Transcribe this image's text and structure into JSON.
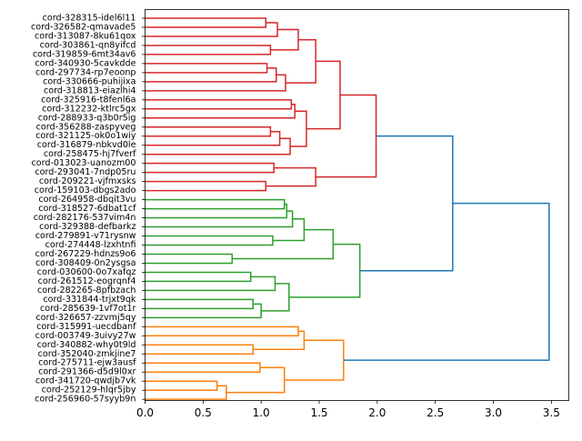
{
  "chart_data": {
    "type": "dendrogram",
    "orientation": "horizontal",
    "title": "",
    "xlabel": "",
    "ylabel": "",
    "xlim": [
      0,
      3.65
    ],
    "xticks": [
      0.0,
      0.5,
      1.0,
      1.5,
      2.0,
      2.5,
      3.0,
      3.5
    ],
    "xtick_labels": [
      "0.0",
      "0.5",
      "1.0",
      "1.5",
      "2.0",
      "2.5",
      "3.0",
      "3.5"
    ],
    "colors": {
      "cluster_red": "#d62728",
      "cluster_green": "#2ca02c",
      "cluster_orange": "#ff7f0e",
      "link_above_threshold": "#1f77b4"
    },
    "leaves": [
      "cord-328315-idel6l11",
      "cord-326582-qmavade5",
      "cord-313087-8ku61qox",
      "cord-303861-qn8yifcd",
      "cord-319859-6mt34av6",
      "cord-340930-5cavkdde",
      "cord-297734-rp7eoonp",
      "cord-330666-puhijixa",
      "cord-318813-eiazlhi4",
      "cord-325916-t8fenl6a",
      "cord-312232-ktlrc5gx",
      "cord-288933-q3b0r5ig",
      "cord-356288-zaspyveg",
      "cord-321125-ok0o1wiy",
      "cord-316879-nbkvd0le",
      "cord-258475-hj7fverf",
      "cord-013023-uanozm00",
      "cord-293041-7ndp05ru",
      "cord-209221-vjfmxsks",
      "cord-159103-dbgs2ado",
      "cord-264958-dbqit3vu",
      "cord-318527-6dbat1cf",
      "cord-282176-537vim4n",
      "cord-329388-defbarkz",
      "cord-279891-v71rysnw",
      "cord-274448-lzxhtnfi",
      "cord-267229-hdnzs9o6",
      "cord-308409-0n2ysgsa",
      "cord-030600-0o7xafqz",
      "cord-261512-eogrqnf4",
      "cord-282265-8pfbzach",
      "cord-331844-trjxt9qk",
      "cord-285639-1vf7ot1r",
      "cord-326657-zzvmj5qy",
      "cord-315991-uecdbanf",
      "cord-003749-3uivy27w",
      "cord-340882-why0t9ld",
      "cord-352040-zmkjine7",
      "cord-275711-ejw3ausf",
      "cord-291366-d5d9l0xr",
      "cord-341720-qwdjb7vk",
      "cord-252129-hlqr5jby",
      "cord-256960-57syyb9n"
    ],
    "merges": [
      {
        "a": "L:0",
        "b": "L:1",
        "height": 1.04,
        "color": "cluster_red"
      },
      {
        "a": "M:0",
        "b": "L:2",
        "height": 1.14,
        "color": "cluster_red"
      },
      {
        "a": "L:3",
        "b": "L:4",
        "height": 1.08,
        "color": "cluster_red"
      },
      {
        "a": "M:1",
        "b": "M:2",
        "height": 1.32,
        "color": "cluster_red"
      },
      {
        "a": "L:5",
        "b": "L:6",
        "height": 1.05,
        "color": "cluster_red"
      },
      {
        "a": "M:4",
        "b": "L:7",
        "height": 1.13,
        "color": "cluster_red"
      },
      {
        "a": "M:5",
        "b": "L:8",
        "height": 1.21,
        "color": "cluster_red"
      },
      {
        "a": "M:3",
        "b": "M:6",
        "height": 1.47,
        "color": "cluster_red"
      },
      {
        "a": "L:9",
        "b": "L:10",
        "height": 1.26,
        "color": "cluster_red"
      },
      {
        "a": "M:8",
        "b": "L:11",
        "height": 1.29,
        "color": "cluster_red"
      },
      {
        "a": "L:12",
        "b": "L:13",
        "height": 1.08,
        "color": "cluster_red"
      },
      {
        "a": "M:10",
        "b": "L:14",
        "height": 1.16,
        "color": "cluster_red"
      },
      {
        "a": "M:11",
        "b": "L:15",
        "height": 1.25,
        "color": "cluster_red"
      },
      {
        "a": "M:9",
        "b": "M:12",
        "height": 1.39,
        "color": "cluster_red"
      },
      {
        "a": "M:7",
        "b": "M:13",
        "height": 1.68,
        "color": "cluster_red"
      },
      {
        "a": "L:16",
        "b": "L:17",
        "height": 1.11,
        "color": "cluster_red"
      },
      {
        "a": "L:18",
        "b": "L:19",
        "height": 1.04,
        "color": "cluster_red"
      },
      {
        "a": "M:15",
        "b": "M:16",
        "height": 1.47,
        "color": "cluster_red"
      },
      {
        "a": "M:14",
        "b": "M:17",
        "height": 1.99,
        "color": "cluster_red"
      },
      {
        "a": "L:20",
        "b": "L:21",
        "height": 1.2,
        "color": "cluster_green"
      },
      {
        "a": "M:19",
        "b": "L:22",
        "height": 1.22,
        "color": "cluster_green"
      },
      {
        "a": "M:20",
        "b": "L:23",
        "height": 1.27,
        "color": "cluster_green"
      },
      {
        "a": "L:24",
        "b": "L:25",
        "height": 1.1,
        "color": "cluster_green"
      },
      {
        "a": "M:21",
        "b": "M:22",
        "height": 1.37,
        "color": "cluster_green"
      },
      {
        "a": "L:26",
        "b": "L:27",
        "height": 0.75,
        "color": "cluster_green"
      },
      {
        "a": "M:23",
        "b": "M:24",
        "height": 1.62,
        "color": "cluster_green"
      },
      {
        "a": "L:28",
        "b": "L:29",
        "height": 0.91,
        "color": "cluster_green"
      },
      {
        "a": "M:26",
        "b": "L:30",
        "height": 1.12,
        "color": "cluster_green"
      },
      {
        "a": "L:31",
        "b": "L:32",
        "height": 0.93,
        "color": "cluster_green"
      },
      {
        "a": "M:28",
        "b": "L:33",
        "height": 1.0,
        "color": "cluster_green"
      },
      {
        "a": "M:27",
        "b": "M:29",
        "height": 1.24,
        "color": "cluster_green"
      },
      {
        "a": "M:25",
        "b": "M:30",
        "height": 1.85,
        "color": "cluster_green"
      },
      {
        "a": "L:34",
        "b": "L:35",
        "height": 1.32,
        "color": "cluster_orange"
      },
      {
        "a": "L:36",
        "b": "L:37",
        "height": 0.93,
        "color": "cluster_orange"
      },
      {
        "a": "M:32",
        "b": "M:33",
        "height": 1.37,
        "color": "cluster_orange"
      },
      {
        "a": "L:38",
        "b": "L:39",
        "height": 0.99,
        "color": "cluster_orange"
      },
      {
        "a": "L:40",
        "b": "L:41",
        "height": 0.62,
        "color": "cluster_orange"
      },
      {
        "a": "M:36",
        "b": "L:42",
        "height": 0.7,
        "color": "cluster_orange"
      },
      {
        "a": "M:35",
        "b": "M:37",
        "height": 1.2,
        "color": "cluster_orange"
      },
      {
        "a": "M:34",
        "b": "M:38",
        "height": 1.71,
        "color": "cluster_orange"
      },
      {
        "a": "M:18",
        "b": "M:31",
        "height": 2.65,
        "color": "link_above_threshold"
      },
      {
        "a": "M:39",
        "b": "M:40",
        "height": 3.48,
        "color": "link_above_threshold"
      }
    ]
  }
}
